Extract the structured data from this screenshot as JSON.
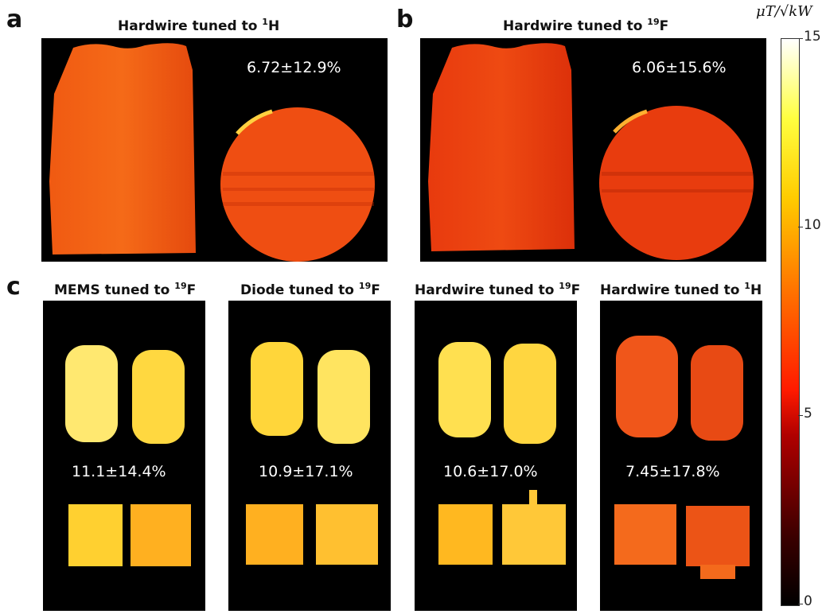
{
  "panel_a": {
    "label": "a",
    "title": "Hardwire tuned to ",
    "isotope_sup": "1",
    "isotope": "H",
    "stat": "6.72±12.9%"
  },
  "panel_b": {
    "label": "b",
    "title": "Hardwire tuned to ",
    "isotope_sup": "19",
    "isotope": "F",
    "stat": "6.06±15.6%"
  },
  "panel_c": {
    "label": "c",
    "subpanels": [
      {
        "title": "MEMS tuned to ",
        "isotope_sup": "19",
        "isotope": "F",
        "stat": "11.1±14.4%"
      },
      {
        "title": "Diode tuned to ",
        "isotope_sup": "19",
        "isotope": "F",
        "stat": "10.9±17.1%"
      },
      {
        "title": "Hardwire tuned to ",
        "isotope_sup": "19",
        "isotope": "F",
        "stat": "10.6±17.0%"
      },
      {
        "title": "Hardwire tuned to ",
        "isotope_sup": "1",
        "isotope": "H",
        "stat": "7.45±17.8%"
      }
    ]
  },
  "colorbar": {
    "unit_label": "μT/√kW",
    "ticks": [
      "15",
      "10",
      "5",
      "0"
    ],
    "min": 0,
    "max": 15,
    "colormap": "hot"
  }
}
